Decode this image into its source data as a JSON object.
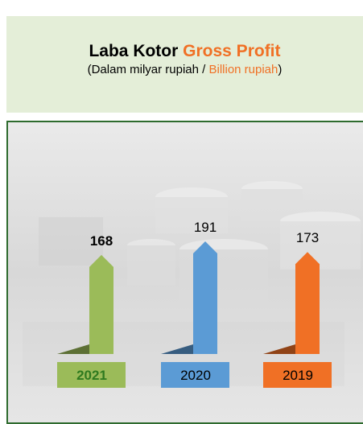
{
  "chart_data": {
    "type": "arrow-bar",
    "title": "Laba Kotor",
    "title_en": "Gross Profit",
    "subtitle": "(Dalam milyar rupiah / ",
    "subtitle_en": "Billion rupiah",
    "subtitle_end": ")",
    "categories": [
      "2021",
      "2020",
      "2019"
    ],
    "values": [
      168,
      191,
      173
    ],
    "colors": [
      "#9bbb59",
      "#5b9bd5",
      "#f07025"
    ],
    "label_text_colors": [
      "#2f7a1f",
      "#000000",
      "#000000"
    ]
  }
}
